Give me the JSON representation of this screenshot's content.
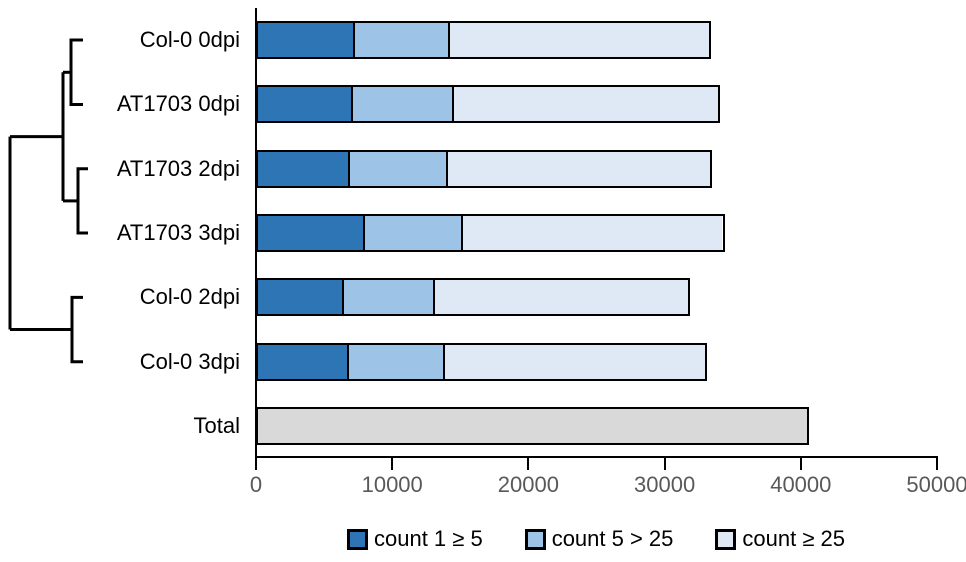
{
  "figure": {
    "description": "Horizontal stacked bar chart of read-count categories per sample with a clustering dendrogram on the left"
  },
  "chart_data": {
    "type": "bar",
    "orientation": "horizontal",
    "stacked": true,
    "title": "",
    "xlabel": "",
    "ylabel": "",
    "grid": false,
    "legend_position": "bottom",
    "x_axis": {
      "min": 0,
      "max": 50000,
      "ticks": [
        "0",
        "10000",
        "20000",
        "30000",
        "40000",
        "50000"
      ],
      "tick_values": [
        0,
        10000,
        20000,
        30000,
        40000,
        50000
      ],
      "tick_color": "#595959"
    },
    "legend": [
      {
        "label": "count 1 ≥ 5",
        "color": "#2E75B6"
      },
      {
        "label": "count 5 > 25",
        "color": "#9DC3E6"
      },
      {
        "label": "count ≥ 25",
        "color": "#DEE9F5"
      }
    ],
    "rows": [
      {
        "label": "Col-0 0dpi",
        "total": 33400,
        "segments": [
          {
            "name": "count 1 ≥ 5",
            "value": 7000,
            "color": "#2E75B6"
          },
          {
            "name": "count 5 > 25",
            "value": 7100,
            "color": "#9DC3E6"
          },
          {
            "name": "count ≥ 25",
            "value": 19300,
            "color": "#DEE9F5"
          }
        ]
      },
      {
        "label": "AT1703 0dpi",
        "total": 34100,
        "segments": [
          {
            "name": "count 1 ≥ 5",
            "value": 6900,
            "color": "#2E75B6"
          },
          {
            "name": "count 5 > 25",
            "value": 7500,
            "color": "#9DC3E6"
          },
          {
            "name": "count ≥ 25",
            "value": 19700,
            "color": "#DEE9F5"
          }
        ]
      },
      {
        "label": "AT1703 2dpi",
        "total": 33500,
        "segments": [
          {
            "name": "count 1 ≥ 5",
            "value": 6700,
            "color": "#2E75B6"
          },
          {
            "name": "count 5 > 25",
            "value": 7200,
            "color": "#9DC3E6"
          },
          {
            "name": "count ≥ 25",
            "value": 19600,
            "color": "#DEE9F5"
          }
        ]
      },
      {
        "label": "AT1703 3dpi",
        "total": 34400,
        "segments": [
          {
            "name": "count 1 ≥ 5",
            "value": 7800,
            "color": "#2E75B6"
          },
          {
            "name": "count 5 > 25",
            "value": 7200,
            "color": "#9DC3E6"
          },
          {
            "name": "count ≥ 25",
            "value": 19400,
            "color": "#DEE9F5"
          }
        ]
      },
      {
        "label": "Col-0 2dpi",
        "total": 31900,
        "segments": [
          {
            "name": "count 1 ≥ 5",
            "value": 6200,
            "color": "#2E75B6"
          },
          {
            "name": "count 5 > 25",
            "value": 6800,
            "color": "#9DC3E6"
          },
          {
            "name": "count ≥ 25",
            "value": 18900,
            "color": "#DEE9F5"
          }
        ]
      },
      {
        "label": "Col-0 3dpi",
        "total": 33100,
        "segments": [
          {
            "name": "count 1 ≥ 5",
            "value": 6600,
            "color": "#2E75B6"
          },
          {
            "name": "count 5 > 25",
            "value": 7100,
            "color": "#9DC3E6"
          },
          {
            "name": "count ≥ 25",
            "value": 19400,
            "color": "#DEE9F5"
          }
        ]
      },
      {
        "label": "Total",
        "total": 40600,
        "segments": [
          {
            "name": "Total",
            "value": 40600,
            "color": "#D9D9D9"
          }
        ]
      }
    ],
    "dendrogram": {
      "clusters": "(((Col-0 0dpi, AT1703 0dpi),(AT1703 2dpi, AT1703 3dpi)),(Col-0 2dpi, Col-0 3dpi))",
      "line_color": "#000000"
    }
  }
}
